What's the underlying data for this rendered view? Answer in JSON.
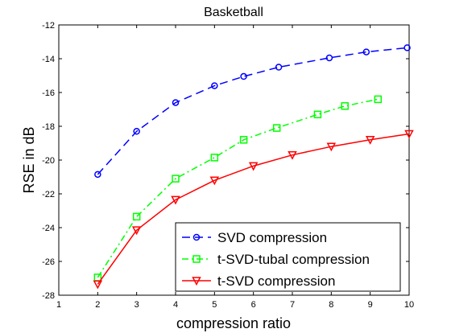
{
  "chart_data": {
    "type": "line",
    "title": "Basketball",
    "xlabel": "compression ratio",
    "ylabel": "RSE in dB",
    "xlim": [
      1,
      10
    ],
    "ylim": [
      -28,
      -12
    ],
    "xticks": [
      "1",
      "2",
      "3",
      "4",
      "5",
      "6",
      "7",
      "8",
      "9",
      "10"
    ],
    "yticks": [
      "-12",
      "-14",
      "-16",
      "-18",
      "-20",
      "-22",
      "-24",
      "-26",
      "-28"
    ],
    "grid": false,
    "legend_position": "bottom-right",
    "series": [
      {
        "name": "SVD compression",
        "color": "#0000ff",
        "line_style": "dashed",
        "marker": "circle",
        "x": [
          2,
          3,
          4,
          5,
          5.75,
          6.65,
          7.95,
          8.9,
          9.95
        ],
        "y": [
          -20.85,
          -18.3,
          -16.6,
          -15.6,
          -15.05,
          -14.5,
          -13.95,
          -13.6,
          -13.35
        ]
      },
      {
        "name": "t-SVD-tubal compression",
        "color": "#00ff00",
        "line_style": "dashdot",
        "marker": "square",
        "x": [
          2,
          3,
          4,
          5,
          5.75,
          6.6,
          7.65,
          8.35,
          9.2
        ],
        "y": [
          -26.95,
          -23.35,
          -21.1,
          -19.85,
          -18.8,
          -18.1,
          -17.3,
          -16.8,
          -16.4
        ]
      },
      {
        "name": "t-SVD compression",
        "color": "#ff0000",
        "line_style": "solid",
        "marker": "triangle-down",
        "x": [
          2,
          3,
          4,
          5,
          6,
          7,
          8,
          9,
          10
        ],
        "y": [
          -27.35,
          -24.15,
          -22.35,
          -21.2,
          -20.35,
          -19.7,
          -19.2,
          -18.8,
          -18.45
        ]
      }
    ]
  }
}
